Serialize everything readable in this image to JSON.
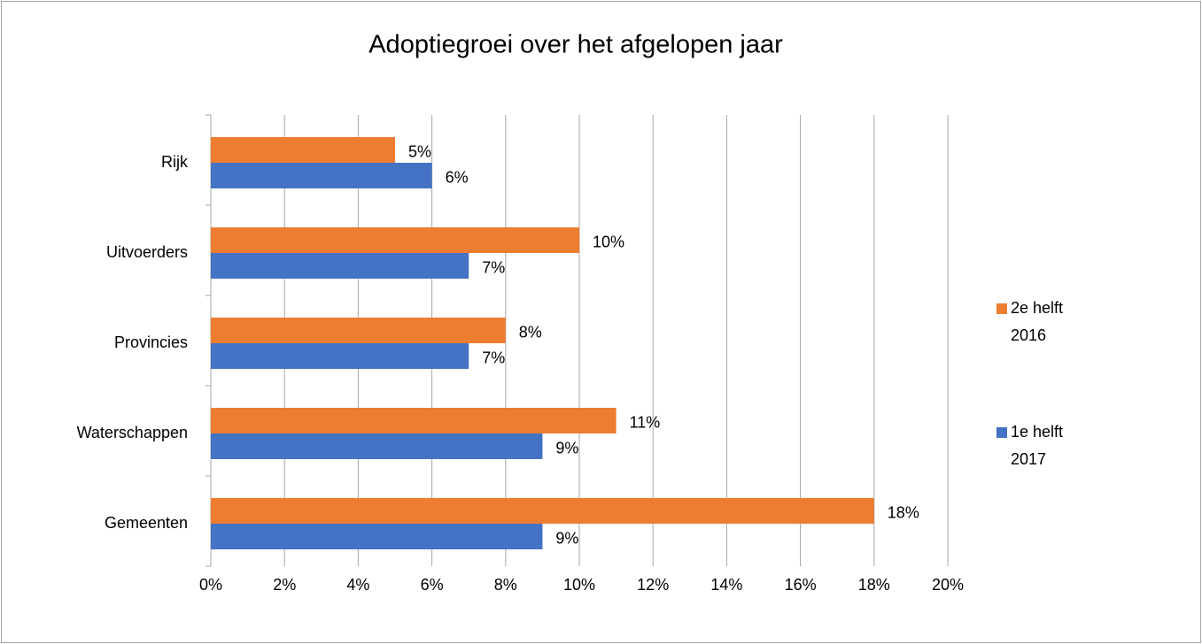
{
  "chart_data": {
    "type": "bar",
    "orientation": "horizontal",
    "title": "Adoptiegroei over het afgelopen jaar",
    "categories": [
      "Rijk",
      "Uitvoerders",
      "Provincies",
      "Waterschappen",
      "Gemeenten"
    ],
    "series": [
      {
        "name": "2e helft 2016",
        "color": "#ed7d31",
        "values": [
          5,
          10,
          8,
          11,
          18
        ],
        "value_labels": [
          "5%",
          "10%",
          "8%",
          "11%",
          "18%"
        ]
      },
      {
        "name": "1e helft 2017",
        "color": "#4472c4",
        "values": [
          6,
          7,
          7,
          9,
          9
        ],
        "value_labels": [
          "6%",
          "7%",
          "7%",
          "9%",
          "9%"
        ]
      }
    ],
    "xlim": [
      0,
      20
    ],
    "xticks": [
      {
        "value": 0,
        "label": "0%"
      },
      {
        "value": 2,
        "label": "2%"
      },
      {
        "value": 4,
        "label": "4%"
      },
      {
        "value": 6,
        "label": "6%"
      },
      {
        "value": 8,
        "label": "8%"
      },
      {
        "value": 10,
        "label": "10%"
      },
      {
        "value": 12,
        "label": "12%"
      },
      {
        "value": 14,
        "label": "14%"
      },
      {
        "value": 16,
        "label": "16%"
      },
      {
        "value": 18,
        "label": "18%"
      },
      {
        "value": 20,
        "label": "20%"
      }
    ],
    "grid": true,
    "legend": "right"
  }
}
